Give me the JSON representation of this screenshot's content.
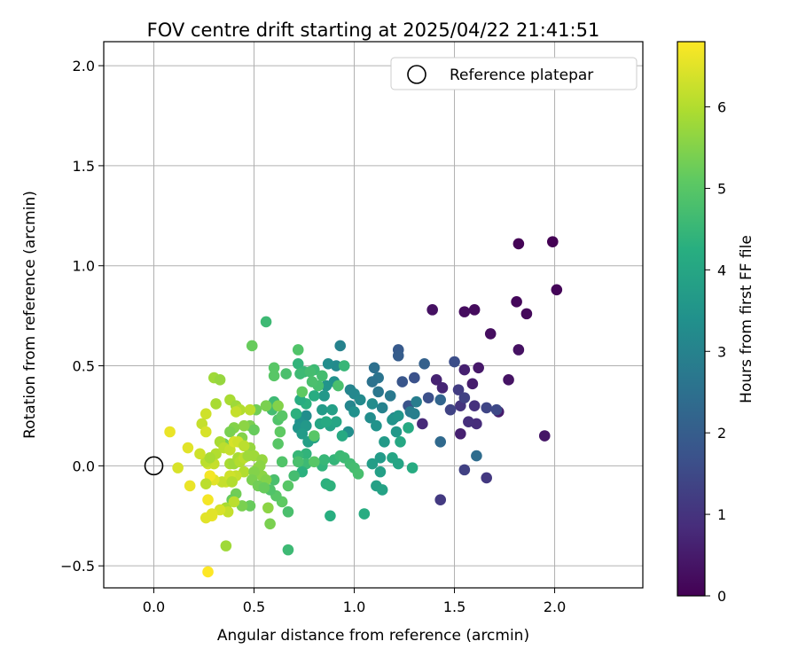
{
  "chart_data": {
    "type": "scatter",
    "title": "FOV centre drift starting at 2025/04/22 21:41:51",
    "xlabel": "Angular distance from reference (arcmin)",
    "ylabel": "Rotation from reference (arcmin)",
    "xlim": [
      -0.25,
      2.44
    ],
    "ylim": [
      -0.61,
      2.12
    ],
    "xticks": [
      "0.0",
      "0.5",
      "1.0",
      "1.5",
      "2.0"
    ],
    "yticks": [
      "−0.5",
      "0.0",
      "0.5",
      "1.0",
      "1.5",
      "2.0"
    ],
    "grid": true,
    "legend": {
      "position": "top-right",
      "entries": [
        "Reference platepar"
      ]
    },
    "reference_point": {
      "x": 0.0,
      "y": 0.0
    },
    "colorbar": {
      "label": "Hours from first FF file",
      "range": [
        0,
        6.8
      ],
      "ticks": [
        "0",
        "1",
        "2",
        "3",
        "4",
        "5",
        "6"
      ],
      "colormap": "viridis"
    },
    "points": [
      [
        1.99,
        1.12,
        0.0
      ],
      [
        1.82,
        1.11,
        0.05
      ],
      [
        2.01,
        0.88,
        0.08
      ],
      [
        1.81,
        0.82,
        0.12
      ],
      [
        1.86,
        0.76,
        0.15
      ],
      [
        1.6,
        0.78,
        0.2
      ],
      [
        1.55,
        0.77,
        0.22
      ],
      [
        1.39,
        0.78,
        0.3
      ],
      [
        1.68,
        0.66,
        0.25
      ],
      [
        1.82,
        0.58,
        0.3
      ],
      [
        1.77,
        0.43,
        0.35
      ],
      [
        1.95,
        0.15,
        0.4
      ],
      [
        1.72,
        0.27,
        0.5
      ],
      [
        1.53,
        0.16,
        0.6
      ],
      [
        1.62,
        0.49,
        0.45
      ],
      [
        1.59,
        0.41,
        0.55
      ],
      [
        1.55,
        0.48,
        0.6
      ],
      [
        1.41,
        0.43,
        0.65
      ],
      [
        1.44,
        0.39,
        0.7
      ],
      [
        1.34,
        0.21,
        0.8
      ],
      [
        1.61,
        0.21,
        0.85
      ],
      [
        1.57,
        0.22,
        0.9
      ],
      [
        1.6,
        0.3,
        0.95
      ],
      [
        1.53,
        0.3,
        1.0
      ],
      [
        1.66,
        -0.06,
        1.1
      ],
      [
        1.43,
        -0.17,
        1.15
      ],
      [
        1.55,
        -0.02,
        1.3
      ],
      [
        1.52,
        0.38,
        1.2
      ],
      [
        1.55,
        0.34,
        1.3
      ],
      [
        1.48,
        0.28,
        1.35
      ],
      [
        1.66,
        0.29,
        1.4
      ],
      [
        1.71,
        0.28,
        1.5
      ],
      [
        1.5,
        0.52,
        1.6
      ],
      [
        1.37,
        0.34,
        1.65
      ],
      [
        1.3,
        0.44,
        1.7
      ],
      [
        1.27,
        0.3,
        1.75
      ],
      [
        1.24,
        0.42,
        1.8
      ],
      [
        1.22,
        0.58,
        1.9
      ],
      [
        1.22,
        0.55,
        2.0
      ],
      [
        1.35,
        0.51,
        2.1
      ],
      [
        1.43,
        0.33,
        2.2
      ],
      [
        1.43,
        0.12,
        2.3
      ],
      [
        1.61,
        0.05,
        2.4
      ],
      [
        1.1,
        0.49,
        2.5
      ],
      [
        1.12,
        0.44,
        2.6
      ],
      [
        1.09,
        0.42,
        2.55
      ],
      [
        1.12,
        0.37,
        2.7
      ],
      [
        1.18,
        0.35,
        2.75
      ],
      [
        1.28,
        0.27,
        2.8
      ],
      [
        1.31,
        0.32,
        2.85
      ],
      [
        1.3,
        0.26,
        2.9
      ],
      [
        1.2,
        0.24,
        2.95
      ],
      [
        1.14,
        0.29,
        3.0
      ],
      [
        0.98,
        0.38,
        3.05
      ],
      [
        0.98,
        0.3,
        3.1
      ],
      [
        1.0,
        0.36,
        3.15
      ],
      [
        1.03,
        0.33,
        3.2
      ],
      [
        1.09,
        0.31,
        3.25
      ],
      [
        1.08,
        0.24,
        3.3
      ],
      [
        0.97,
        0.17,
        3.35
      ],
      [
        1.0,
        0.27,
        3.4
      ],
      [
        1.11,
        0.2,
        3.45
      ],
      [
        1.19,
        0.23,
        3.5
      ],
      [
        1.22,
        0.25,
        3.55
      ],
      [
        1.21,
        0.17,
        3.6
      ],
      [
        1.15,
        0.12,
        3.65
      ],
      [
        1.13,
        0.04,
        3.7
      ],
      [
        1.09,
        0.01,
        3.75
      ],
      [
        1.13,
        -0.03,
        3.8
      ],
      [
        1.11,
        -0.1,
        3.85
      ],
      [
        1.14,
        -0.12,
        3.9
      ],
      [
        1.22,
        0.01,
        3.95
      ],
      [
        1.19,
        0.04,
        4.0
      ],
      [
        1.23,
        0.12,
        4.05
      ],
      [
        1.27,
        0.19,
        4.1
      ],
      [
        1.29,
        -0.01,
        4.15
      ],
      [
        1.05,
        -0.24,
        4.2
      ],
      [
        0.88,
        -0.25,
        4.25
      ],
      [
        0.86,
        -0.09,
        4.3
      ],
      [
        0.88,
        -0.1,
        4.35
      ],
      [
        0.84,
        0.0,
        4.4
      ],
      [
        0.85,
        0.03,
        4.5
      ],
      [
        0.9,
        0.03,
        4.45
      ],
      [
        0.93,
        0.05,
        4.55
      ],
      [
        0.95,
        0.04,
        4.6
      ],
      [
        0.98,
        0.01,
        4.65
      ],
      [
        1.0,
        -0.01,
        4.7
      ],
      [
        1.02,
        -0.04,
        4.75
      ],
      [
        0.91,
        0.5,
        3.2
      ],
      [
        0.87,
        0.51,
        3.3
      ],
      [
        0.93,
        0.6,
        3.0
      ],
      [
        0.9,
        0.42,
        3.4
      ],
      [
        0.86,
        0.4,
        3.5
      ],
      [
        0.85,
        0.35,
        3.6
      ],
      [
        0.84,
        0.28,
        3.7
      ],
      [
        0.89,
        0.28,
        3.8
      ],
      [
        0.88,
        0.2,
        3.9
      ],
      [
        0.91,
        0.22,
        4.0
      ],
      [
        0.94,
        0.15,
        4.1
      ],
      [
        0.95,
        0.5,
        4.5
      ],
      [
        0.92,
        0.4,
        4.8
      ],
      [
        0.8,
        0.48,
        4.6
      ],
      [
        0.84,
        0.45,
        4.7
      ],
      [
        0.82,
        0.4,
        4.75
      ],
      [
        0.8,
        0.35,
        4.2
      ],
      [
        0.76,
        0.31,
        4.3
      ],
      [
        0.72,
        0.51,
        4.4
      ],
      [
        0.75,
        0.47,
        4.5
      ],
      [
        0.73,
        0.46,
        4.6
      ],
      [
        0.78,
        0.47,
        4.7
      ],
      [
        0.79,
        0.42,
        4.8
      ],
      [
        0.76,
        0.25,
        3.3
      ],
      [
        0.73,
        0.22,
        3.4
      ],
      [
        0.72,
        0.19,
        3.5
      ],
      [
        0.76,
        0.2,
        3.6
      ],
      [
        0.74,
        0.16,
        3.7
      ],
      [
        0.77,
        0.12,
        3.8
      ],
      [
        0.8,
        0.14,
        3.9
      ],
      [
        0.83,
        0.21,
        4.0
      ],
      [
        0.86,
        0.22,
        4.1
      ],
      [
        0.73,
        0.33,
        4.2
      ],
      [
        0.71,
        0.26,
        4.3
      ],
      [
        0.76,
        0.06,
        4.4
      ],
      [
        0.72,
        0.05,
        4.5
      ],
      [
        0.76,
        0.01,
        4.6
      ],
      [
        0.72,
        0.02,
        4.8
      ],
      [
        0.74,
        -0.03,
        4.3
      ],
      [
        0.7,
        -0.05,
        4.7
      ],
      [
        0.72,
        0.58,
        4.9
      ],
      [
        0.74,
        0.37,
        5.1
      ],
      [
        0.8,
        0.15,
        5.0
      ],
      [
        0.8,
        0.02,
        5.0
      ],
      [
        0.67,
        -0.1,
        5.0
      ],
      [
        0.67,
        -0.23,
        4.8
      ],
      [
        0.67,
        -0.42,
        4.6
      ],
      [
        0.64,
        -0.18,
        5.1
      ],
      [
        0.61,
        -0.15,
        5.0
      ],
      [
        0.6,
        -0.07,
        4.8
      ],
      [
        0.58,
        -0.12,
        4.9
      ],
      [
        0.64,
        0.02,
        4.9
      ],
      [
        0.62,
        0.11,
        5.0
      ],
      [
        0.63,
        0.17,
        5.1
      ],
      [
        0.62,
        0.23,
        4.9
      ],
      [
        0.64,
        0.25,
        5.0
      ],
      [
        0.6,
        0.32,
        4.6
      ],
      [
        0.59,
        0.28,
        4.7
      ],
      [
        0.6,
        0.45,
        5.0
      ],
      [
        0.6,
        0.49,
        5.0
      ],
      [
        0.66,
        0.46,
        4.8
      ],
      [
        0.56,
        0.72,
        4.6
      ],
      [
        0.49,
        0.6,
        5.2
      ],
      [
        0.56,
        0.3,
        5.2
      ],
      [
        0.51,
        0.28,
        5.3
      ],
      [
        0.56,
        0.3,
        5.4
      ],
      [
        0.62,
        0.3,
        5.5
      ],
      [
        0.48,
        0.2,
        5.4
      ],
      [
        0.5,
        0.18,
        5.2
      ],
      [
        0.45,
        0.2,
        5.6
      ],
      [
        0.4,
        0.19,
        5.5
      ],
      [
        0.38,
        0.17,
        5.4
      ],
      [
        0.35,
        0.11,
        5.3
      ],
      [
        0.44,
        0.14,
        5.5
      ],
      [
        0.48,
        0.09,
        5.7
      ],
      [
        0.5,
        0.05,
        5.8
      ],
      [
        0.52,
        -0.01,
        5.7
      ],
      [
        0.54,
        -0.05,
        5.6
      ],
      [
        0.56,
        -0.07,
        5.5
      ],
      [
        0.57,
        -0.21,
        5.6
      ],
      [
        0.58,
        -0.29,
        5.4
      ],
      [
        0.48,
        -0.2,
        5.2
      ],
      [
        0.44,
        -0.2,
        5.4
      ],
      [
        0.41,
        -0.14,
        5.3
      ],
      [
        0.39,
        -0.17,
        5.2
      ],
      [
        0.36,
        -0.4,
        5.8
      ],
      [
        0.36,
        -0.21,
        5.9
      ],
      [
        0.37,
        -0.23,
        6.2
      ],
      [
        0.33,
        -0.22,
        6.4
      ],
      [
        0.29,
        -0.25,
        6.6
      ],
      [
        0.26,
        -0.26,
        6.5
      ],
      [
        0.27,
        -0.17,
        6.7
      ],
      [
        0.27,
        -0.53,
        6.8
      ],
      [
        0.36,
        -0.08,
        6.3
      ],
      [
        0.34,
        -0.08,
        6.2
      ],
      [
        0.3,
        -0.07,
        6.5
      ],
      [
        0.28,
        -0.05,
        6.7
      ],
      [
        0.27,
        0.01,
        6.3
      ],
      [
        0.3,
        0.01,
        6.2
      ],
      [
        0.26,
        0.02,
        6.1
      ],
      [
        0.31,
        0.06,
        6.0
      ],
      [
        0.33,
        0.12,
        5.9
      ],
      [
        0.35,
        0.09,
        6.1
      ],
      [
        0.38,
        0.08,
        6.2
      ],
      [
        0.4,
        0.12,
        6.4
      ],
      [
        0.42,
        0.12,
        6.3
      ],
      [
        0.45,
        0.1,
        6.1
      ],
      [
        0.45,
        -0.03,
        6.0
      ],
      [
        0.41,
        -0.05,
        6.2
      ],
      [
        0.38,
        -0.05,
        6.3
      ],
      [
        0.38,
        0.01,
        5.9
      ],
      [
        0.4,
        0.01,
        5.8
      ],
      [
        0.42,
        0.04,
        5.9
      ],
      [
        0.43,
        0.02,
        6.0
      ],
      [
        0.45,
        0.04,
        6.1
      ],
      [
        0.47,
        0.05,
        5.8
      ],
      [
        0.54,
        0.03,
        5.7
      ],
      [
        0.53,
        0.0,
        5.6
      ],
      [
        0.5,
        -0.03,
        5.5
      ],
      [
        0.49,
        -0.07,
        5.4
      ],
      [
        0.52,
        -0.1,
        5.3
      ],
      [
        0.55,
        -0.11,
        5.2
      ],
      [
        0.3,
        0.44,
        5.8
      ],
      [
        0.33,
        0.43,
        5.7
      ],
      [
        0.31,
        0.31,
        5.9
      ],
      [
        0.38,
        0.33,
        5.9
      ],
      [
        0.41,
        0.3,
        5.8
      ],
      [
        0.43,
        0.28,
        6.0
      ],
      [
        0.48,
        0.28,
        6.1
      ],
      [
        0.41,
        0.27,
        6.2
      ],
      [
        0.26,
        0.26,
        6.3
      ],
      [
        0.24,
        0.21,
        6.2
      ],
      [
        0.26,
        0.17,
        6.4
      ],
      [
        0.17,
        0.09,
        6.5
      ],
      [
        0.08,
        0.17,
        6.6
      ],
      [
        0.12,
        -0.01,
        6.4
      ],
      [
        0.18,
        -0.1,
        6.6
      ],
      [
        0.29,
        -0.24,
        6.5
      ],
      [
        0.4,
        -0.18,
        6.1
      ],
      [
        0.39,
        -0.08,
        6.0
      ],
      [
        0.28,
        0.04,
        5.9
      ],
      [
        0.26,
        -0.09,
        6.1
      ],
      [
        0.23,
        0.06,
        6.3
      ]
    ]
  }
}
